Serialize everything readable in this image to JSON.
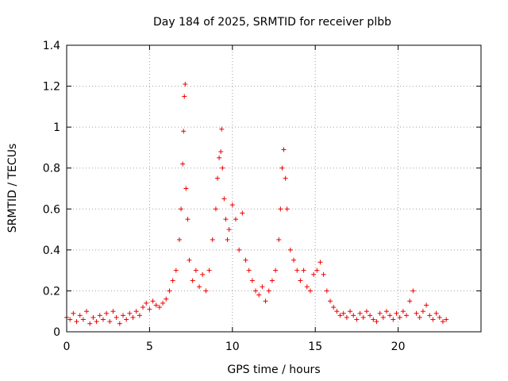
{
  "chart_data": {
    "type": "scatter",
    "title": "Day 184 of 2025, SRMTID for receiver plbb",
    "xlabel": "GPS time / hours",
    "ylabel": "SRMTID / TECUs",
    "xlim": [
      0,
      25
    ],
    "ylim": [
      0,
      1.4
    ],
    "x_ticks": [
      0,
      5,
      10,
      15,
      20
    ],
    "x_tick_labels": [
      "0",
      "5",
      "10",
      "15",
      "20"
    ],
    "y_ticks": [
      0,
      0.2,
      0.4,
      0.6,
      0.8,
      1.0,
      1.2,
      1.4
    ],
    "y_tick_labels": [
      "0",
      "0.2",
      "0.4",
      "0.6",
      "0.8",
      "1",
      "1.2",
      "1.4"
    ],
    "grid": true,
    "marker": "plus",
    "color": "#ee0000",
    "series": [
      {
        "name": "SRMTID",
        "points": [
          [
            0.0,
            0.07
          ],
          [
            0.2,
            0.06
          ],
          [
            0.4,
            0.09
          ],
          [
            0.6,
            0.05
          ],
          [
            0.8,
            0.08
          ],
          [
            1.0,
            0.06
          ],
          [
            1.2,
            0.1
          ],
          [
            1.4,
            0.04
          ],
          [
            1.6,
            0.07
          ],
          [
            1.8,
            0.05
          ],
          [
            2.0,
            0.08
          ],
          [
            2.2,
            0.06
          ],
          [
            2.4,
            0.09
          ],
          [
            2.6,
            0.05
          ],
          [
            2.8,
            0.1
          ],
          [
            3.0,
            0.07
          ],
          [
            3.2,
            0.04
          ],
          [
            3.4,
            0.08
          ],
          [
            3.6,
            0.06
          ],
          [
            3.8,
            0.09
          ],
          [
            4.0,
            0.07
          ],
          [
            4.2,
            0.1
          ],
          [
            4.4,
            0.08
          ],
          [
            4.6,
            0.12
          ],
          [
            4.8,
            0.14
          ],
          [
            5.0,
            0.11
          ],
          [
            5.2,
            0.15
          ],
          [
            5.4,
            0.13
          ],
          [
            5.6,
            0.12
          ],
          [
            5.8,
            0.14
          ],
          [
            6.0,
            0.16
          ],
          [
            6.2,
            0.2
          ],
          [
            6.4,
            0.25
          ],
          [
            6.6,
            0.3
          ],
          [
            6.8,
            0.45
          ],
          [
            6.9,
            0.6
          ],
          [
            7.0,
            0.82
          ],
          [
            7.05,
            0.98
          ],
          [
            7.1,
            1.15
          ],
          [
            7.15,
            1.21
          ],
          [
            7.2,
            0.7
          ],
          [
            7.3,
            0.55
          ],
          [
            7.4,
            0.35
          ],
          [
            7.6,
            0.25
          ],
          [
            7.8,
            0.3
          ],
          [
            8.0,
            0.22
          ],
          [
            8.2,
            0.28
          ],
          [
            8.4,
            0.2
          ],
          [
            8.6,
            0.3
          ],
          [
            8.8,
            0.45
          ],
          [
            9.0,
            0.6
          ],
          [
            9.1,
            0.75
          ],
          [
            9.2,
            0.85
          ],
          [
            9.3,
            0.88
          ],
          [
            9.35,
            0.99
          ],
          [
            9.4,
            0.8
          ],
          [
            9.5,
            0.65
          ],
          [
            9.6,
            0.55
          ],
          [
            9.7,
            0.45
          ],
          [
            9.8,
            0.5
          ],
          [
            10.0,
            0.62
          ],
          [
            10.2,
            0.55
          ],
          [
            10.4,
            0.4
          ],
          [
            10.6,
            0.58
          ],
          [
            10.8,
            0.35
          ],
          [
            11.0,
            0.3
          ],
          [
            11.2,
            0.25
          ],
          [
            11.4,
            0.2
          ],
          [
            11.6,
            0.18
          ],
          [
            11.8,
            0.22
          ],
          [
            12.0,
            0.15
          ],
          [
            12.2,
            0.2
          ],
          [
            12.4,
            0.25
          ],
          [
            12.6,
            0.3
          ],
          [
            12.8,
            0.45
          ],
          [
            12.9,
            0.6
          ],
          [
            13.0,
            0.8
          ],
          [
            13.1,
            0.89
          ],
          [
            13.2,
            0.75
          ],
          [
            13.3,
            0.6
          ],
          [
            13.5,
            0.4
          ],
          [
            13.7,
            0.35
          ],
          [
            13.9,
            0.3
          ],
          [
            14.1,
            0.25
          ],
          [
            14.3,
            0.3
          ],
          [
            14.5,
            0.22
          ],
          [
            14.7,
            0.2
          ],
          [
            14.9,
            0.28
          ],
          [
            15.1,
            0.3
          ],
          [
            15.3,
            0.34
          ],
          [
            15.5,
            0.28
          ],
          [
            15.7,
            0.2
          ],
          [
            15.9,
            0.15
          ],
          [
            16.1,
            0.12
          ],
          [
            16.3,
            0.1
          ],
          [
            16.5,
            0.08
          ],
          [
            16.7,
            0.09
          ],
          [
            16.9,
            0.07
          ],
          [
            17.1,
            0.1
          ],
          [
            17.3,
            0.08
          ],
          [
            17.5,
            0.06
          ],
          [
            17.7,
            0.09
          ],
          [
            17.9,
            0.07
          ],
          [
            18.1,
            0.1
          ],
          [
            18.3,
            0.08
          ],
          [
            18.5,
            0.06
          ],
          [
            18.7,
            0.05
          ],
          [
            18.9,
            0.09
          ],
          [
            19.1,
            0.07
          ],
          [
            19.3,
            0.1
          ],
          [
            19.5,
            0.08
          ],
          [
            19.7,
            0.06
          ],
          [
            19.9,
            0.09
          ],
          [
            20.1,
            0.07
          ],
          [
            20.3,
            0.1
          ],
          [
            20.5,
            0.08
          ],
          [
            20.7,
            0.15
          ],
          [
            20.9,
            0.2
          ],
          [
            21.1,
            0.09
          ],
          [
            21.3,
            0.07
          ],
          [
            21.5,
            0.1
          ],
          [
            21.7,
            0.13
          ],
          [
            21.9,
            0.08
          ],
          [
            22.1,
            0.06
          ],
          [
            22.3,
            0.09
          ],
          [
            22.5,
            0.07
          ],
          [
            22.7,
            0.05
          ],
          [
            22.9,
            0.06
          ]
        ]
      }
    ]
  }
}
